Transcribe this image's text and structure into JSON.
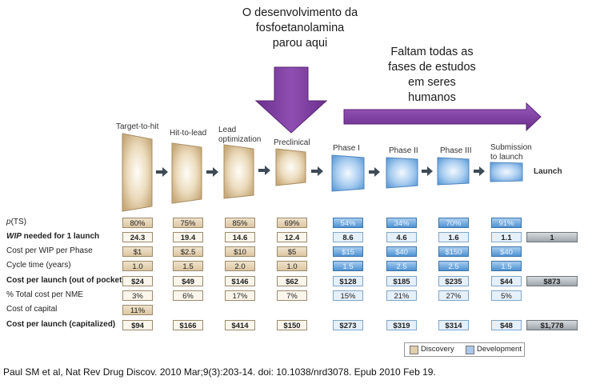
{
  "annotations": {
    "top": [
      "O desenvolvimento da",
      "fosfoetanolamina",
      "parou aqui"
    ],
    "right": [
      "Faltam todas as",
      "fases de estudos",
      "em seres",
      "humanos"
    ]
  },
  "phases": [
    {
      "label": [
        "Target-to-hit"
      ],
      "type": "discovery"
    },
    {
      "label": [
        "Hit-to-lead"
      ],
      "type": "discovery"
    },
    {
      "label": [
        "Lead",
        "optimization"
      ],
      "type": "discovery"
    },
    {
      "label": [
        "Preclinical"
      ],
      "type": "discovery"
    },
    {
      "label": [
        "Phase I"
      ],
      "type": "development"
    },
    {
      "label": [
        "Phase II"
      ],
      "type": "development"
    },
    {
      "label": [
        "Phase III"
      ],
      "type": "development"
    },
    {
      "label": [
        "Submission",
        "to launch"
      ],
      "type": "development"
    }
  ],
  "launch_label": "Launch",
  "rows": [
    {
      "label_prefix": "p",
      "label": "(TS)",
      "style": "colored",
      "bold": false,
      "values": [
        "80%",
        "75%",
        "85%",
        "69%",
        "54%",
        "34%",
        "70%",
        "91%"
      ],
      "total": ""
    },
    {
      "label_prefix": "WIP",
      "label": " needed for 1 launch",
      "style": "white",
      "bold": true,
      "values": [
        "24.3",
        "19.4",
        "14.6",
        "12.4",
        "8.6",
        "4.6",
        "1.6",
        "1.1"
      ],
      "total": "1"
    },
    {
      "label_prefix": "",
      "label": "Cost per WIP per Phase",
      "style": "colored",
      "bold": false,
      "values": [
        "$1",
        "$2.5",
        "$10",
        "$5",
        "$15",
        "$40",
        "$150",
        "$40"
      ],
      "total": ""
    },
    {
      "label_prefix": "",
      "label": "Cycle time (years)",
      "style": "colored",
      "bold": false,
      "values": [
        "1.0",
        "1.5",
        "2.0",
        "1.0",
        "1.5",
        "2.5",
        "2.5",
        "1.5"
      ],
      "total": ""
    },
    {
      "label_prefix": "",
      "label": "Cost per launch (out of pocket)",
      "style": "white",
      "bold": true,
      "values": [
        "$24",
        "$49",
        "$146",
        "$62",
        "$128",
        "$185",
        "$235",
        "$44"
      ],
      "total": "$873"
    },
    {
      "label_prefix": "",
      "label": "% Total cost per NME",
      "style": "white",
      "bold": false,
      "values": [
        "3%",
        "6%",
        "17%",
        "7%",
        "15%",
        "21%",
        "27%",
        "5%"
      ],
      "total": ""
    },
    {
      "label_prefix": "",
      "label": "Cost of capital",
      "style": "colored",
      "bold": false,
      "values": [
        "11%",
        "",
        "",
        "",
        "",
        "",
        "",
        ""
      ],
      "total": ""
    },
    {
      "label_prefix": "",
      "label": "Cost per launch (capitalized)",
      "style": "white",
      "bold": true,
      "values": [
        "$94",
        "$166",
        "$414",
        "$150",
        "$273",
        "$319",
        "$314",
        "$48"
      ],
      "total": "$1,778"
    }
  ],
  "legend": {
    "discovery": "Discovery",
    "development": "Development"
  },
  "citation": "Paul SM et al, Nat Rev Drug Discov. 2010 Mar;9(3):203-14. doi: 10.1038/nrd3078. Epub 2010 Feb 19.",
  "colors": {
    "purple_arrow": "#7a3a9a",
    "discovery": "#dcc6a2",
    "development": "#5b9bd5",
    "total": "#a8b0b5"
  }
}
